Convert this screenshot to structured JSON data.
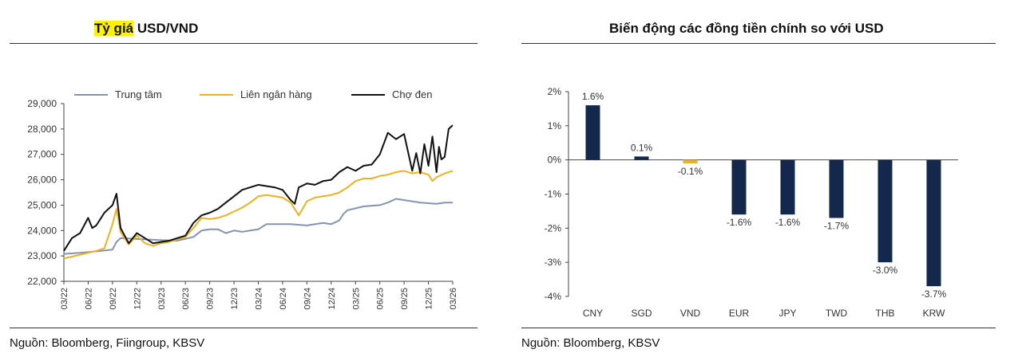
{
  "left_panel": {
    "title_highlight": "Tỷ giá",
    "title_rest": " USD/VND",
    "source": "Nguồn: Bloomberg, Fiingroup, KBSV"
  },
  "right_panel": {
    "title": "Biến động các đồng tiền chính so với USD",
    "source": "Nguồn: Bloomberg, KBSV"
  },
  "colors": {
    "trung_tam": "#8393b3",
    "lien_ngan_hang": "#f0b020",
    "cho_den": "#111111",
    "bar_navy": "#14284b",
    "bar_vnd": "#f0b020"
  },
  "chart_data": [
    {
      "type": "line",
      "title": "Tỷ giá USD/VND",
      "ylim": [
        22000,
        29000
      ],
      "yticks": [
        22000,
        23000,
        24000,
        25000,
        26000,
        27000,
        28000,
        29000
      ],
      "ytick_labels": [
        "22,000",
        "23,000",
        "24,000",
        "25,000",
        "26,000",
        "27,000",
        "28,000",
        "29,000"
      ],
      "xlim": [
        0,
        48
      ],
      "xticks": [
        0,
        3,
        6,
        9,
        12,
        15,
        18,
        21,
        24,
        27,
        30,
        33,
        36,
        39,
        42,
        45,
        48
      ],
      "xtick_labels": [
        "03/22",
        "06/22",
        "09/22",
        "12/22",
        "03/23",
        "06/23",
        "09/23",
        "12/23",
        "03/24",
        "06/24",
        "09/24",
        "12/24",
        "03/25",
        "06/25",
        "09/25",
        "12/25",
        "03/26"
      ],
      "legend": [
        "Trung tâm",
        "Liên ngân hàng",
        "Chợ đen"
      ],
      "series": [
        {
          "name": "Trung tâm",
          "x": [
            0,
            2,
            4,
            6,
            6.5,
            7,
            10,
            12,
            14,
            16,
            17,
            18,
            19,
            20,
            21,
            22,
            24,
            25,
            28,
            30,
            32,
            33,
            34,
            34.5,
            35,
            37,
            39,
            40,
            41,
            42,
            44,
            46,
            47,
            48
          ],
          "y": [
            23080,
            23120,
            23180,
            23250,
            23550,
            23700,
            23650,
            23620,
            23600,
            23750,
            24000,
            24050,
            24050,
            23900,
            24000,
            23950,
            24050,
            24250,
            24250,
            24200,
            24300,
            24250,
            24400,
            24650,
            24800,
            24950,
            25000,
            25100,
            25250,
            25200,
            25100,
            25050,
            25100,
            25100
          ]
        },
        {
          "name": "Liên ngân hàng",
          "x": [
            0,
            2,
            4,
            5,
            6,
            6.5,
            7,
            8,
            9,
            10,
            11,
            12,
            13,
            15,
            16,
            17,
            18,
            19,
            20,
            21,
            22,
            23,
            24,
            25,
            26,
            27,
            28,
            29,
            30,
            31,
            32,
            33,
            34,
            35,
            36,
            37,
            38,
            39,
            40,
            41,
            42,
            43,
            44,
            45,
            45.5,
            46,
            47,
            48
          ],
          "y": [
            22900,
            23050,
            23200,
            23300,
            24250,
            24850,
            23950,
            23450,
            23800,
            23500,
            23400,
            23500,
            23550,
            23750,
            24100,
            24500,
            24450,
            24500,
            24600,
            24750,
            24900,
            25100,
            25350,
            25400,
            25350,
            25300,
            25100,
            24600,
            25150,
            25300,
            25350,
            25400,
            25500,
            25700,
            25950,
            26050,
            26050,
            26150,
            26200,
            26300,
            26350,
            26250,
            26300,
            26200,
            25950,
            26100,
            26250,
            26350
          ]
        },
        {
          "name": "Chợ đen",
          "x": [
            0,
            1,
            2,
            3,
            3.5,
            4,
            5,
            6,
            6.5,
            7,
            8,
            9,
            10,
            11,
            12,
            13,
            15,
            16,
            17,
            18,
            19,
            20,
            21,
            22,
            23,
            24,
            25,
            26,
            27,
            28,
            28.5,
            29,
            30,
            31,
            32,
            33,
            34,
            35,
            36,
            37,
            38,
            39,
            40,
            41,
            42,
            43,
            43.5,
            44,
            44.5,
            45,
            45.5,
            46,
            46.3,
            46.6,
            47,
            47.5,
            48
          ],
          "y": [
            23200,
            23700,
            23900,
            24500,
            24100,
            24200,
            24700,
            25000,
            25450,
            24100,
            23500,
            23900,
            23700,
            23500,
            23550,
            23600,
            23800,
            24300,
            24600,
            24700,
            24850,
            25100,
            25350,
            25600,
            25700,
            25800,
            25750,
            25700,
            25600,
            25200,
            25050,
            25700,
            25850,
            25800,
            25950,
            26000,
            26300,
            26500,
            26350,
            26550,
            26600,
            27000,
            27850,
            27600,
            27800,
            26350,
            27050,
            26250,
            27400,
            26550,
            27700,
            26300,
            27300,
            26800,
            26900,
            28000,
            28150
          ]
        }
      ]
    },
    {
      "type": "bar",
      "title": "Biến động các đồng tiền chính so với USD",
      "categories": [
        "CNY",
        "SGD",
        "VND",
        "EUR",
        "JPY",
        "TWD",
        "THB",
        "KRW"
      ],
      "values": [
        1.6,
        0.1,
        -0.1,
        -1.6,
        -1.6,
        -1.7,
        -3.0,
        -3.7
      ],
      "value_labels": [
        "1.6%",
        "0.1%",
        "-0.1%",
        "-1.6%",
        "-1.6%",
        "-1.7%",
        "-3.0%",
        "-3.7%"
      ],
      "ylim": [
        -4,
        2
      ],
      "yticks": [
        2,
        1,
        0,
        -1,
        -2,
        -3,
        -4
      ],
      "ytick_labels": [
        "2%",
        "1%",
        "0%",
        "-1%",
        "-2%",
        "-3%",
        "-4%"
      ]
    }
  ]
}
